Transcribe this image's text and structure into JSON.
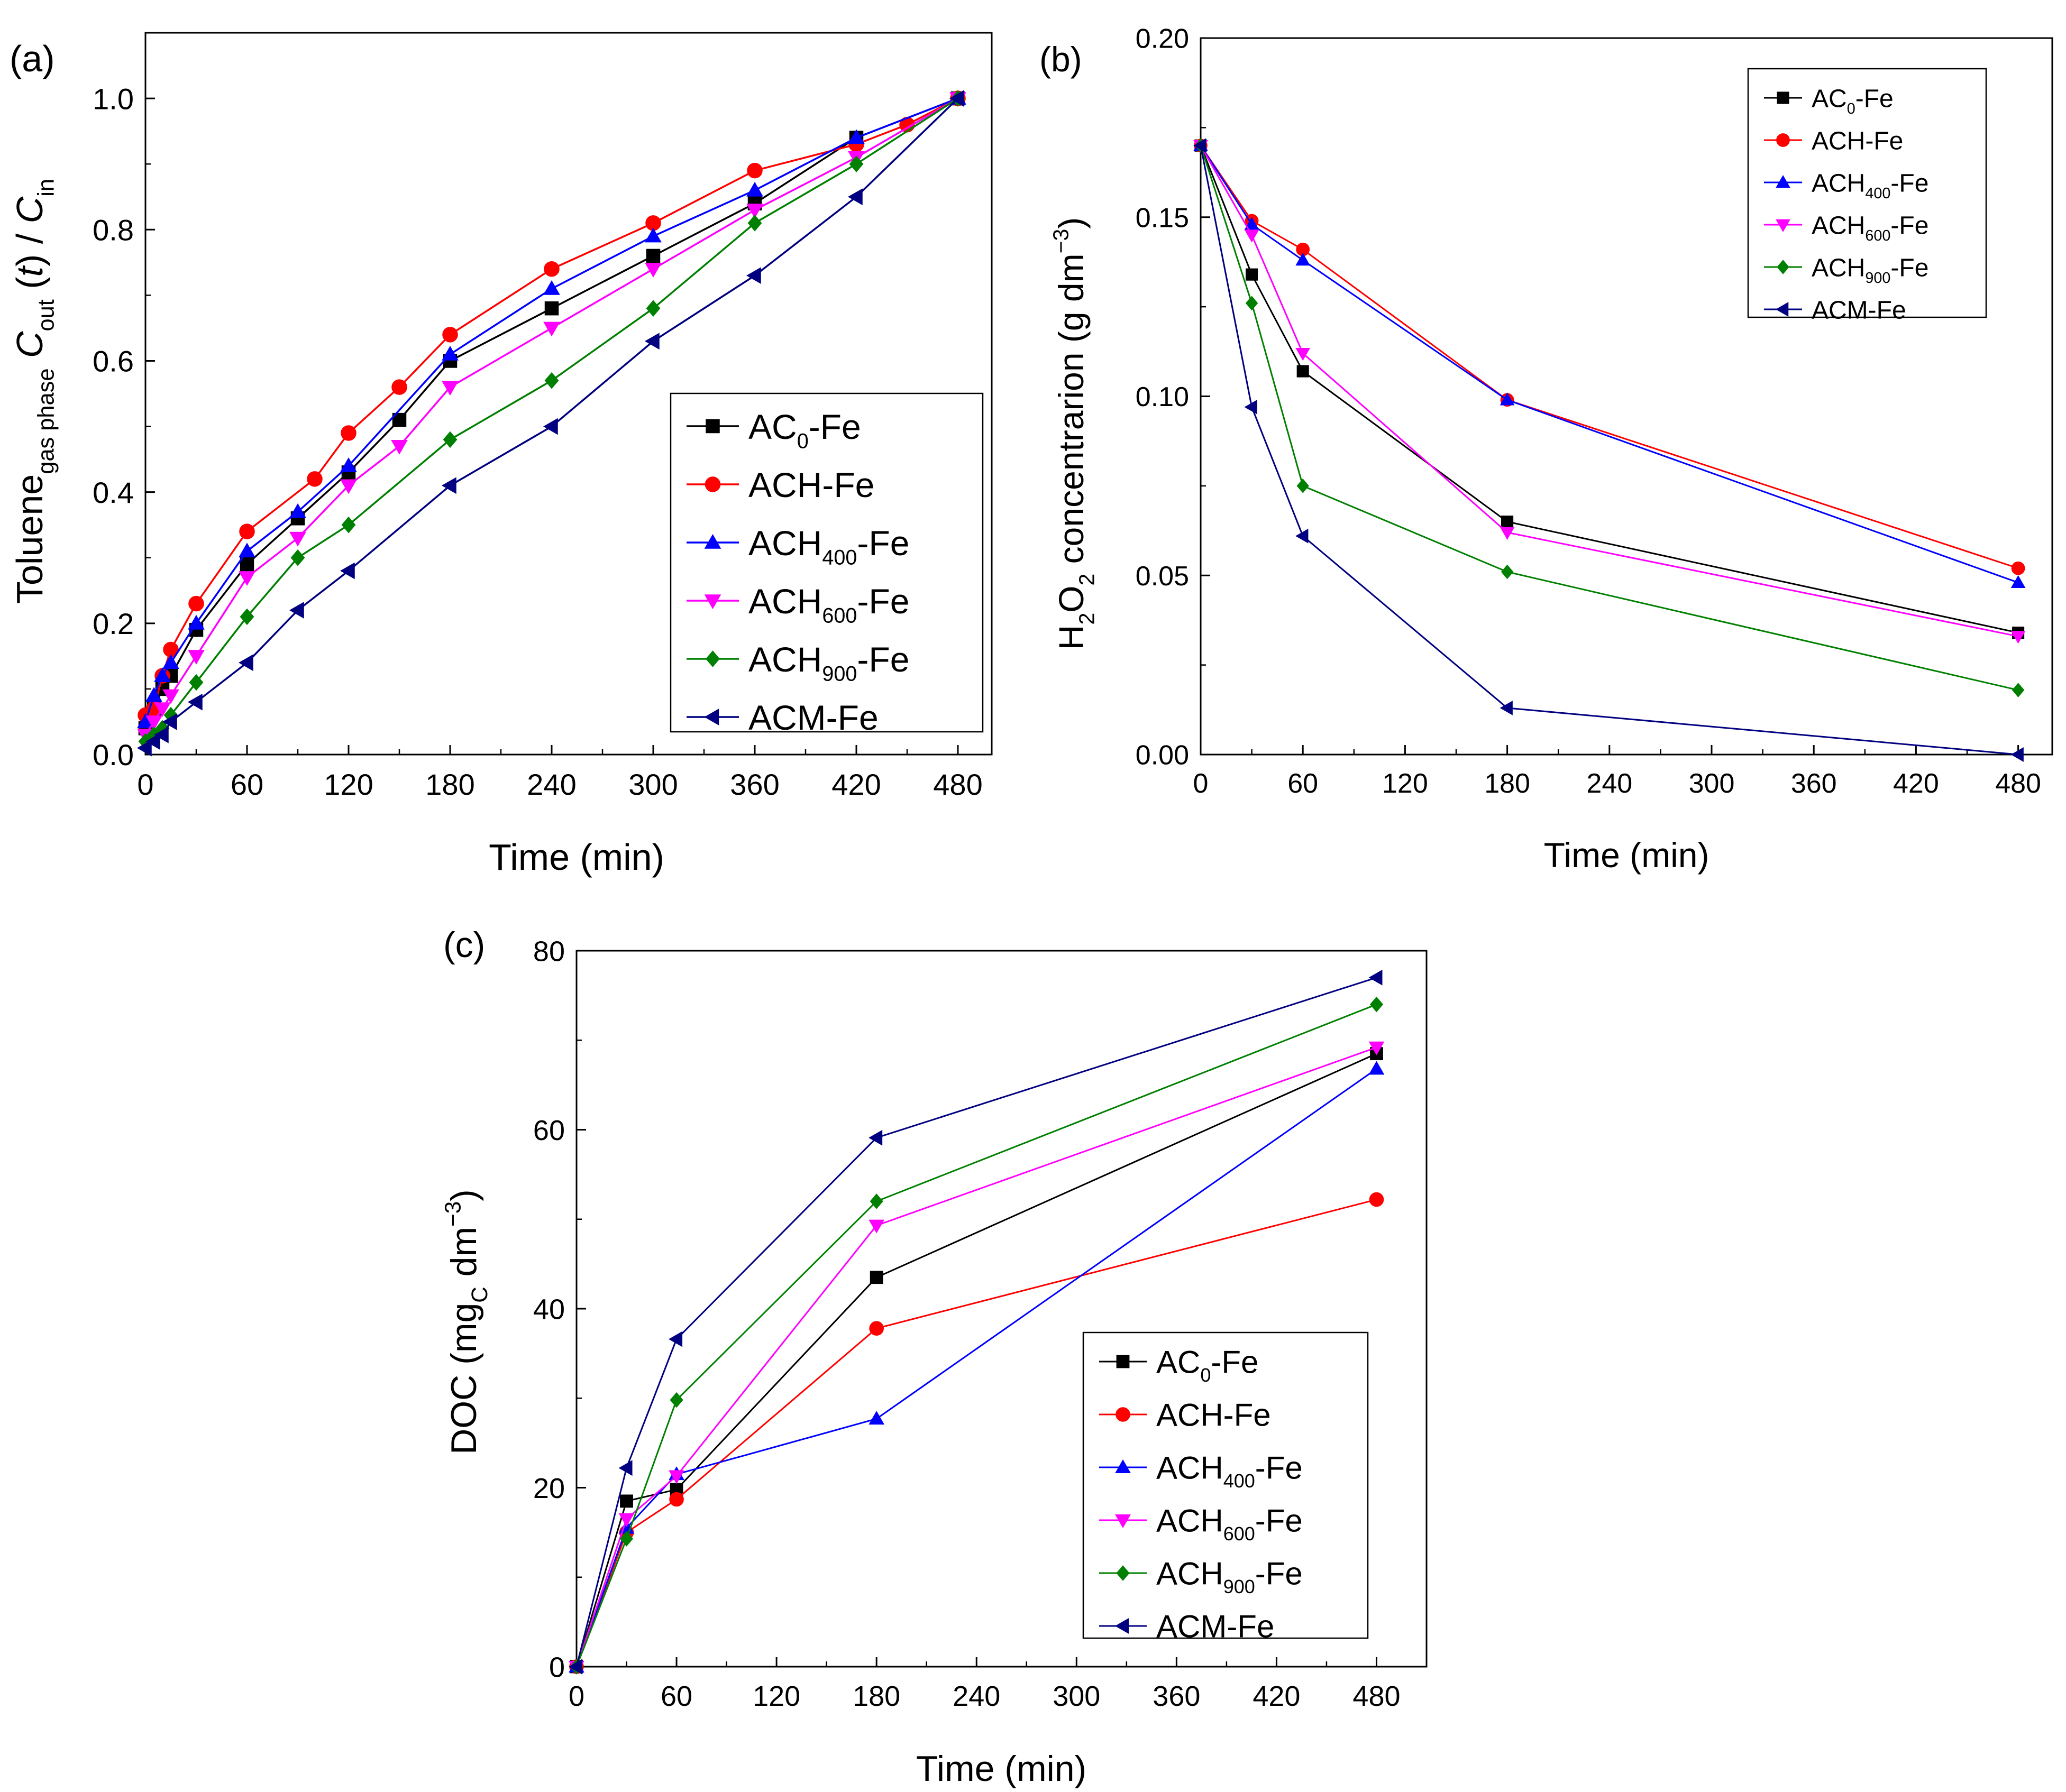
{
  "chart_data": [
    {
      "panel": "(a)",
      "type": "line",
      "xlabel": "Time (min)",
      "ylabel": {
        "base": "Toluene",
        "sub": "gas phase",
        "mid": " C",
        "sub2": "out",
        "paren": " (t) / C",
        "sub3": "in"
      },
      "xlim": [
        0,
        500
      ],
      "ylim": [
        0,
        1.1
      ],
      "xticks": [
        0,
        60,
        120,
        180,
        240,
        300,
        360,
        420,
        480
      ],
      "yticks": [
        0.0,
        0.2,
        0.4,
        0.6,
        0.8,
        1.0
      ],
      "ytick_labels": [
        "0.0",
        "0.2",
        "0.4",
        "0.6",
        "0.8",
        "1.0"
      ],
      "legend_position": "lower-right",
      "series": [
        {
          "name": "AC",
          "sub": "0",
          "suffix": "-Fe",
          "color": "#000000",
          "marker": "square",
          "x": [
            0,
            5,
            10,
            15,
            30,
            60,
            90,
            120,
            150,
            180,
            240,
            300,
            360,
            420,
            480
          ],
          "y": [
            0.04,
            0.07,
            0.1,
            0.12,
            0.19,
            0.29,
            0.36,
            0.43,
            0.51,
            0.6,
            0.68,
            0.76,
            0.84,
            0.94,
            1.0
          ]
        },
        {
          "name": "ACH-Fe",
          "sub": "",
          "suffix": "",
          "color": "#ff0000",
          "marker": "circle",
          "x": [
            0,
            5,
            10,
            15,
            30,
            60,
            100,
            120,
            150,
            180,
            240,
            300,
            360,
            420,
            450,
            480
          ],
          "y": [
            0.06,
            0.07,
            0.12,
            0.16,
            0.23,
            0.34,
            0.42,
            0.49,
            0.56,
            0.64,
            0.74,
            0.81,
            0.89,
            0.93,
            0.96,
            1.0
          ]
        },
        {
          "name": "ACH",
          "sub": "400",
          "suffix": "-Fe",
          "color": "#0000ff",
          "marker": "triangle-up",
          "x": [
            0,
            5,
            10,
            15,
            30,
            60,
            90,
            120,
            180,
            240,
            300,
            360,
            420,
            480
          ],
          "y": [
            0.05,
            0.09,
            0.12,
            0.14,
            0.2,
            0.31,
            0.37,
            0.44,
            0.61,
            0.71,
            0.79,
            0.86,
            0.94,
            1.0
          ]
        },
        {
          "name": "ACH",
          "sub": "600",
          "suffix": "-Fe",
          "color": "#ff00ff",
          "marker": "triangle-down",
          "x": [
            0,
            5,
            10,
            15,
            30,
            60,
            90,
            120,
            150,
            180,
            240,
            300,
            360,
            420,
            480
          ],
          "y": [
            0.03,
            0.05,
            0.07,
            0.09,
            0.15,
            0.27,
            0.33,
            0.41,
            0.47,
            0.56,
            0.65,
            0.74,
            0.83,
            0.91,
            1.0
          ]
        },
        {
          "name": "ACH",
          "sub": "900",
          "suffix": "-Fe",
          "color": "#008000",
          "marker": "diamond",
          "x": [
            0,
            5,
            10,
            15,
            30,
            60,
            90,
            120,
            180,
            240,
            300,
            360,
            420,
            480
          ],
          "y": [
            0.02,
            0.03,
            0.04,
            0.06,
            0.11,
            0.21,
            0.3,
            0.35,
            0.48,
            0.57,
            0.68,
            0.81,
            0.9,
            1.0
          ]
        },
        {
          "name": "ACM-Fe",
          "sub": "",
          "suffix": "",
          "color": "#000080",
          "marker": "triangle-left",
          "x": [
            0,
            5,
            10,
            15,
            30,
            60,
            90,
            120,
            180,
            240,
            300,
            360,
            420,
            480
          ],
          "y": [
            0.01,
            0.02,
            0.03,
            0.05,
            0.08,
            0.14,
            0.22,
            0.28,
            0.41,
            0.5,
            0.63,
            0.73,
            0.85,
            1.0
          ]
        }
      ]
    },
    {
      "panel": "(b)",
      "type": "line",
      "xlabel": "Time (min)",
      "ylabel": {
        "base": "H",
        "sub": "2",
        "mid": "O",
        "sub2": "2",
        "paren": " concentrarion (g dm",
        "sup": "−3",
        "tail": ")"
      },
      "xlim": [
        0,
        500
      ],
      "ylim": [
        0,
        0.2
      ],
      "xticks": [
        0,
        60,
        120,
        180,
        240,
        300,
        360,
        420,
        480
      ],
      "yticks": [
        0.0,
        0.05,
        0.1,
        0.15,
        0.2
      ],
      "ytick_labels": [
        "0.00",
        "0.05",
        "0.10",
        "0.15",
        "0.20"
      ],
      "legend_position": "top-right",
      "series": [
        {
          "name": "AC",
          "sub": "0",
          "suffix": "-Fe",
          "color": "#000000",
          "marker": "square",
          "x": [
            0,
            30,
            60,
            180,
            480
          ],
          "y": [
            0.17,
            0.134,
            0.107,
            0.065,
            0.034
          ]
        },
        {
          "name": "ACH-Fe",
          "sub": "",
          "suffix": "",
          "color": "#ff0000",
          "marker": "circle",
          "x": [
            0,
            30,
            60,
            180,
            480
          ],
          "y": [
            0.17,
            0.149,
            0.141,
            0.099,
            0.052
          ]
        },
        {
          "name": "ACH",
          "sub": "400",
          "suffix": "-Fe",
          "color": "#0000ff",
          "marker": "triangle-up",
          "x": [
            0,
            30,
            60,
            180,
            480
          ],
          "y": [
            0.17,
            0.148,
            0.138,
            0.099,
            0.048
          ]
        },
        {
          "name": "ACH",
          "sub": "600",
          "suffix": "-Fe",
          "color": "#ff00ff",
          "marker": "triangle-down",
          "x": [
            0,
            30,
            60,
            180,
            480
          ],
          "y": [
            0.17,
            0.145,
            0.112,
            0.062,
            0.033
          ]
        },
        {
          "name": "ACH",
          "sub": "900",
          "suffix": "-Fe",
          "color": "#008000",
          "marker": "diamond",
          "x": [
            0,
            30,
            60,
            180,
            480
          ],
          "y": [
            0.17,
            0.126,
            0.075,
            0.051,
            0.018
          ]
        },
        {
          "name": "ACM-Fe",
          "sub": "",
          "suffix": "",
          "color": "#000080",
          "marker": "triangle-left",
          "x": [
            0,
            30,
            60,
            180,
            480
          ],
          "y": [
            0.17,
            0.097,
            0.061,
            0.013,
            0.0
          ]
        }
      ]
    },
    {
      "panel": "(c)",
      "type": "line",
      "xlabel": "Time (min)",
      "ylabel": {
        "base": "DOC (mg",
        "sub": "C",
        "mid": " dm",
        "sup": "−3",
        "tail": ")"
      },
      "xlim": [
        0,
        510
      ],
      "ylim": [
        0,
        80
      ],
      "xticks": [
        0,
        60,
        120,
        180,
        240,
        300,
        360,
        420,
        480
      ],
      "yticks": [
        0,
        20,
        40,
        60,
        80
      ],
      "ytick_labels": [
        "0",
        "20",
        "40",
        "60",
        "80"
      ],
      "legend_position": "lower-right",
      "series": [
        {
          "name": "AC",
          "sub": "0",
          "suffix": "-Fe",
          "color": "#000000",
          "marker": "square",
          "x": [
            0,
            30,
            60,
            180,
            480
          ],
          "y": [
            0,
            18.5,
            19.8,
            43.5,
            68.5
          ]
        },
        {
          "name": "ACH-Fe",
          "sub": "",
          "suffix": "",
          "color": "#ff0000",
          "marker": "circle",
          "x": [
            0,
            30,
            60,
            180,
            480
          ],
          "y": [
            0,
            15.0,
            18.7,
            37.8,
            52.2
          ]
        },
        {
          "name": "ACH",
          "sub": "400",
          "suffix": "-Fe",
          "color": "#0000ff",
          "marker": "triangle-up",
          "x": [
            0,
            30,
            60,
            180,
            480
          ],
          "y": [
            0,
            15.5,
            21.5,
            27.7,
            66.8
          ]
        },
        {
          "name": "ACH",
          "sub": "600",
          "suffix": "-Fe",
          "color": "#ff00ff",
          "marker": "triangle-down",
          "x": [
            0,
            30,
            60,
            180,
            480
          ],
          "y": [
            0,
            16.5,
            21.3,
            49.3,
            69.2
          ]
        },
        {
          "name": "ACH",
          "sub": "900",
          "suffix": "-Fe",
          "color": "#008000",
          "marker": "diamond",
          "x": [
            0,
            30,
            60,
            180,
            480
          ],
          "y": [
            0,
            14.3,
            29.8,
            52.0,
            74.0
          ]
        },
        {
          "name": "ACM-Fe",
          "sub": "",
          "suffix": "",
          "color": "#000080",
          "marker": "triangle-left",
          "x": [
            0,
            30,
            60,
            180,
            480
          ],
          "y": [
            0,
            22.2,
            36.6,
            59.1,
            77.0
          ]
        }
      ]
    }
  ]
}
